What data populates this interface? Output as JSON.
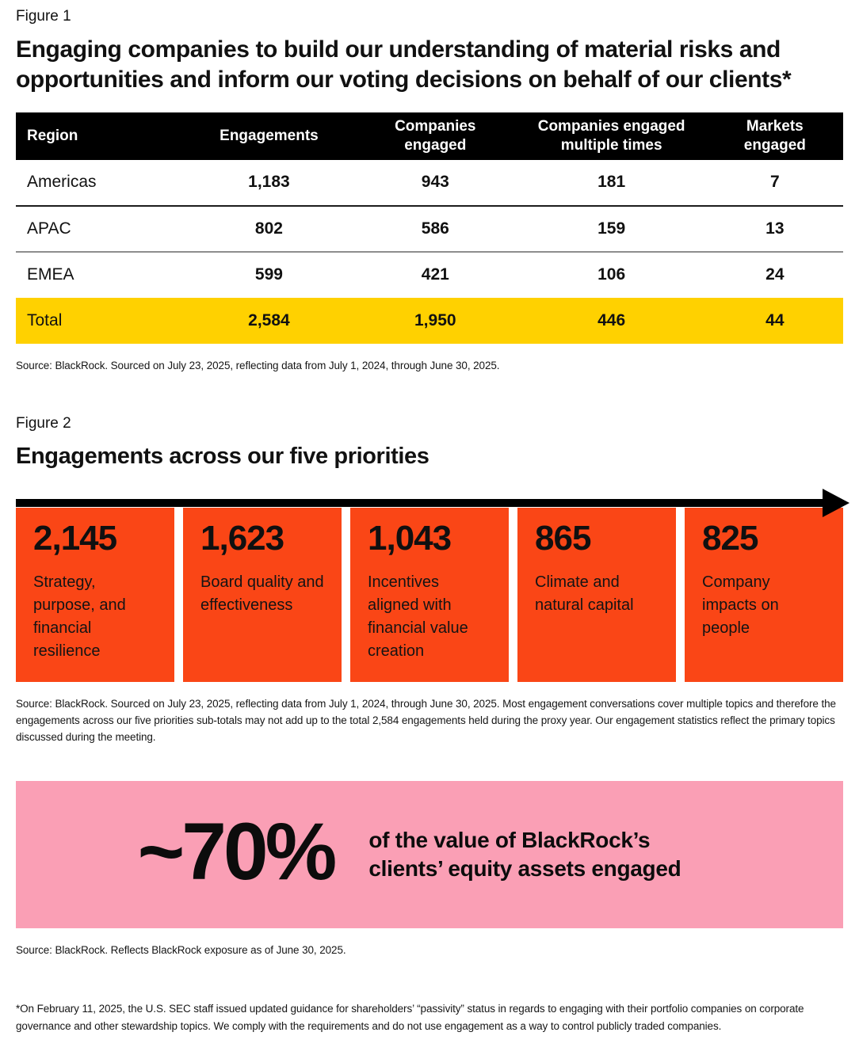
{
  "figure1": {
    "label": "Figure 1",
    "title": "Engaging companies to build our understanding of material risks and opportunities and inform our voting decisions on behalf of our clients*",
    "table": {
      "columns": [
        "Region",
        "Engagements",
        "Companies engaged",
        "Companies engaged multiple times",
        "Markets engaged"
      ],
      "rows": [
        {
          "region": "Americas",
          "values": [
            "1,183",
            "943",
            "181",
            "7"
          ]
        },
        {
          "region": "APAC",
          "values": [
            "802",
            "586",
            "159",
            "13"
          ]
        },
        {
          "region": "EMEA",
          "values": [
            "599",
            "421",
            "106",
            "24"
          ]
        }
      ],
      "total": {
        "region": "Total",
        "values": [
          "2,584",
          "1,950",
          "446",
          "44"
        ]
      }
    },
    "source": "Source: BlackRock. Sourced on July 23, 2025, reflecting data from July 1, 2024, through June 30, 2025."
  },
  "figure2": {
    "label": "Figure 2",
    "title": "Engagements across our five priorities",
    "priorities": [
      {
        "value": "2,145",
        "label": "Strategy, purpose, and financial resilience"
      },
      {
        "value": "1,623",
        "label": "Board quality and effectiveness"
      },
      {
        "value": "1,043",
        "label": "Incentives aligned with financial value creation"
      },
      {
        "value": "865",
        "label": "Climate and natural capital"
      },
      {
        "value": "825",
        "label": "Company impacts on people"
      }
    ],
    "source": "Source: BlackRock. Sourced on July 23, 2025, reflecting data from July 1, 2024, through June 30, 2025. Most engagement conversations cover multiple topics and therefore the engagements across our five priorities sub-totals may not add up to the total 2,584 engagements held during the proxy year. Our engagement statistics reflect the primary topics discussed during the meeting."
  },
  "highlight": {
    "stat": "~70%",
    "text": "of the value of BlackRock’s clients’ equity assets engaged",
    "source": "Source: BlackRock. Reflects BlackRock exposure as of June 30, 2025."
  },
  "footnote": "*On February 11, 2025, the U.S. SEC staff issued updated guidance for shareholders’ “passivity” status in regards to engaging with their portfolio companies on corporate governance and other stewardship topics. We comply with the requirements and do not use engagement as a way to control publicly traded companies.",
  "colors": {
    "orange": "#FA4616",
    "yellow": "#FFD100",
    "pink": "#FA9FB5",
    "header_bg": "#000000"
  }
}
